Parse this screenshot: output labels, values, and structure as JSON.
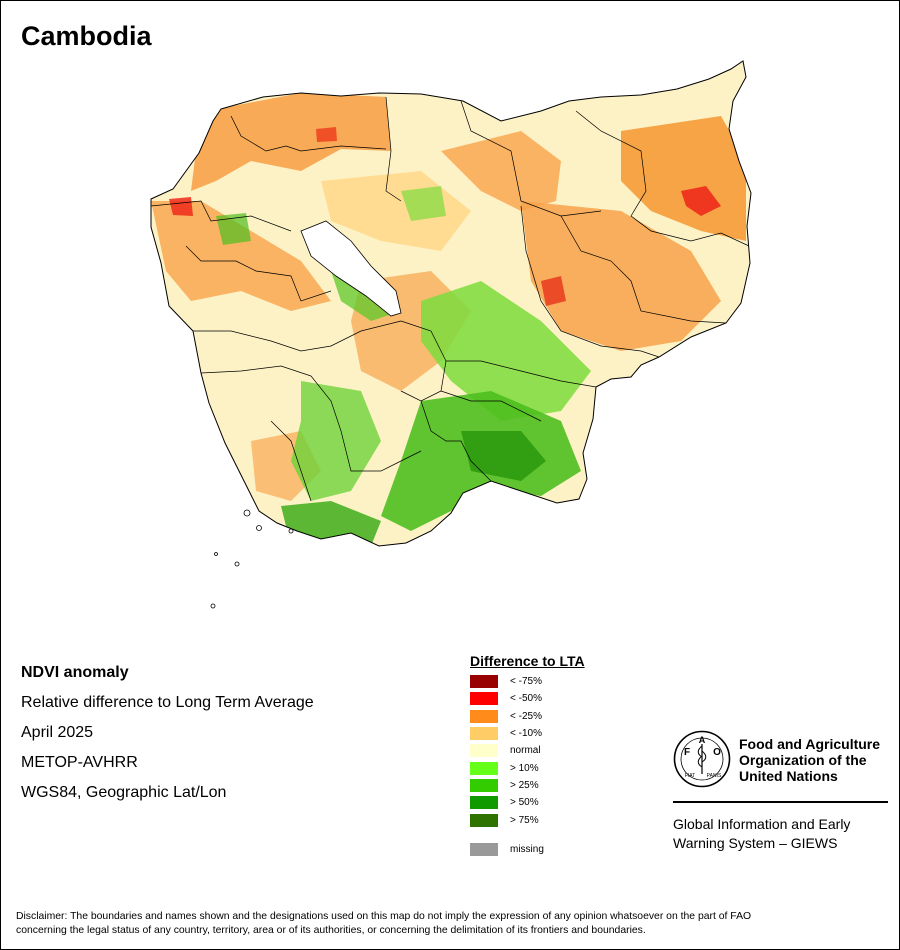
{
  "title": "Cambodia",
  "info": {
    "heading": "NDVI anomaly",
    "subtitle": "Relative difference to Long Term Average",
    "period": "April 2025",
    "sensor": "METOP-AVHRR",
    "projection": "WGS84, Geographic Lat/Lon"
  },
  "legend": {
    "title": "Difference to LTA",
    "classes": [
      {
        "label": "< -75%",
        "color": "#990000"
      },
      {
        "label": "< -50%",
        "color": "#ff0000"
      },
      {
        "label": "< -25%",
        "color": "#ff8c1a"
      },
      {
        "label": "< -10%",
        "color": "#ffcc66"
      },
      {
        "label": "normal",
        "color": "#ffffcc"
      },
      {
        "label": "> 10%",
        "color": "#66ff1a"
      },
      {
        "label": "> 25%",
        "color": "#33cc00"
      },
      {
        "label": "> 50%",
        "color": "#119900"
      },
      {
        "label": "> 75%",
        "color": "#2e7300"
      }
    ],
    "missing": {
      "label": "missing",
      "color": "#999999"
    }
  },
  "organization": {
    "name_line1": "Food and Agriculture",
    "name_line2": "Organization of the",
    "name_line3": "United Nations",
    "system_line1": "Global Information and Early",
    "system_line2": "Warning System – GIEWS",
    "logo_text": "FAO",
    "logo_motto_left": "FIAT",
    "logo_motto_right": "PANIS"
  },
  "disclaimer_line1": "Disclaimer: The boundaries and names shown and the designations used on this map do not imply the expression of any opinion whatsoever on the part of FAO",
  "disclaimer_line2": "concerning the legal status of any country, territory, area or of its authorities, or concerning the delimitation of its frontiers and boundaries."
}
